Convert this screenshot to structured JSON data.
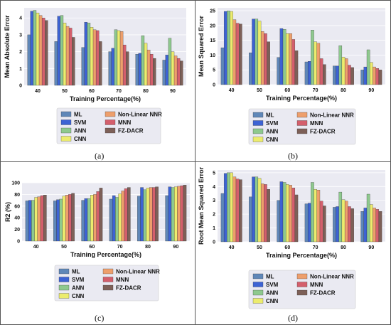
{
  "chart_data": [
    {
      "type": "bar",
      "panel": "(a)",
      "ylabel": "Mean Absolute Error",
      "xlabel": "Training Percentage(%)",
      "categories": [
        "40",
        "50",
        "60",
        "70",
        "80",
        "90"
      ],
      "ylim": [
        0,
        4.6
      ],
      "yticks": [
        0,
        1,
        2,
        3,
        4
      ],
      "series": [
        {
          "name": "ML",
          "values": [
            3.0,
            2.6,
            2.25,
            2.0,
            1.85,
            1.5
          ]
        },
        {
          "name": "SVM",
          "values": [
            4.4,
            4.1,
            3.75,
            2.2,
            1.9,
            1.8
          ]
        },
        {
          "name": "ANN",
          "values": [
            4.45,
            4.15,
            3.7,
            3.3,
            2.95,
            2.8
          ]
        },
        {
          "name": "CNN",
          "values": [
            4.3,
            3.7,
            3.45,
            3.25,
            2.5,
            2.0
          ]
        },
        {
          "name": "Non-Linear NNR",
          "values": [
            4.15,
            3.5,
            3.3,
            3.2,
            2.1,
            1.75
          ]
        },
        {
          "name": "MNN",
          "values": [
            4.0,
            3.4,
            3.25,
            2.4,
            1.85,
            1.6
          ]
        },
        {
          "name": "FZ-DACR",
          "values": [
            3.85,
            2.85,
            2.6,
            2.0,
            1.6,
            1.45
          ]
        }
      ],
      "legend": "center"
    },
    {
      "type": "bar",
      "panel": "(b)",
      "ylabel": "Mean Squared Error",
      "xlabel": "Training Percentage(%)",
      "categories": [
        "40",
        "50",
        "60",
        "70",
        "80",
        "90"
      ],
      "ylim": [
        0,
        26
      ],
      "yticks": [
        0,
        5,
        10,
        15,
        20,
        25
      ],
      "series": [
        {
          "name": "ML",
          "values": [
            12.5,
            10.8,
            9.2,
            7.7,
            6.3,
            5.0
          ]
        },
        {
          "name": "SVM",
          "values": [
            24.8,
            22.2,
            19.0,
            7.9,
            6.3,
            6.0
          ]
        },
        {
          "name": "ANN",
          "values": [
            25.0,
            22.2,
            18.7,
            18.5,
            13.2,
            11.8
          ]
        },
        {
          "name": "CNN",
          "values": [
            24.8,
            21.5,
            17.3,
            14.5,
            9.3,
            7.5
          ]
        },
        {
          "name": "Non-Linear NNR",
          "values": [
            22.0,
            18.0,
            17.3,
            14.0,
            8.8,
            6.0
          ]
        },
        {
          "name": "MNN",
          "values": [
            20.8,
            17.3,
            15.3,
            8.8,
            6.6,
            5.5
          ]
        },
        {
          "name": "FZ-DACR",
          "values": [
            20.5,
            14.5,
            11.5,
            6.8,
            5.8,
            5.0
          ]
        }
      ],
      "legend": "center"
    },
    {
      "type": "bar",
      "panel": "(c)",
      "ylabel": "R2 (%)",
      "xlabel": "Training Percentage(%)",
      "categories": [
        "40",
        "50",
        "60",
        "70",
        "80",
        "90"
      ],
      "ylim": [
        0,
        100
      ],
      "yticks": [
        0,
        20,
        40,
        60,
        80,
        100
      ],
      "series": [
        {
          "name": "ML",
          "values": [
            69,
            69,
            70,
            72,
            77,
            78
          ]
        },
        {
          "name": "SVM",
          "values": [
            70,
            71,
            73,
            78,
            92,
            93
          ]
        },
        {
          "name": "ANN",
          "values": [
            70,
            72,
            73,
            75,
            88,
            92
          ]
        },
        {
          "name": "CNN",
          "values": [
            75,
            77,
            79,
            81,
            91,
            93
          ]
        },
        {
          "name": "Non-Linear NNR",
          "values": [
            76,
            79,
            80,
            86,
            92,
            94
          ]
        },
        {
          "name": "MNN",
          "values": [
            78,
            80,
            85,
            90,
            92,
            95
          ]
        },
        {
          "name": "FZ-DACR",
          "values": [
            79,
            82,
            91,
            92,
            93,
            96
          ]
        }
      ],
      "legend": "center"
    },
    {
      "type": "bar",
      "panel": "(d)",
      "ylabel": "Root Mean Squared Error",
      "xlabel": "Training Percentage(%)",
      "categories": [
        "40",
        "50",
        "60",
        "70",
        "80",
        "90"
      ],
      "ylim": [
        0,
        5.2
      ],
      "yticks": [
        0,
        1,
        2,
        3,
        4,
        5
      ],
      "series": [
        {
          "name": "ML",
          "values": [
            3.5,
            3.25,
            3.0,
            2.75,
            2.5,
            2.2
          ]
        },
        {
          "name": "SVM",
          "values": [
            4.95,
            4.7,
            4.35,
            2.8,
            2.55,
            2.45
          ]
        },
        {
          "name": "ANN",
          "values": [
            5.0,
            4.7,
            4.3,
            4.3,
            3.6,
            3.45
          ]
        },
        {
          "name": "CNN",
          "values": [
            5.0,
            4.6,
            4.15,
            3.8,
            3.05,
            2.7
          ]
        },
        {
          "name": "Non-Linear NNR",
          "values": [
            4.7,
            4.2,
            4.1,
            3.75,
            2.95,
            2.45
          ]
        },
        {
          "name": "MNN",
          "values": [
            4.55,
            4.15,
            3.9,
            2.95,
            2.55,
            2.35
          ]
        },
        {
          "name": "FZ-DACR",
          "values": [
            4.5,
            3.8,
            3.4,
            2.6,
            2.4,
            2.2
          ]
        }
      ],
      "legend": "center"
    }
  ],
  "colors": {
    "ML": "#5f87b8",
    "SVM": "#3d63d4",
    "ANN": "#8ec98e",
    "CNN": "#ecec6e",
    "Non-Linear NNR": "#ee9f6c",
    "MNN": "#d45f6c",
    "FZ-DACR": "#7d6058",
    "plot_bg": "#eaeaf2"
  }
}
